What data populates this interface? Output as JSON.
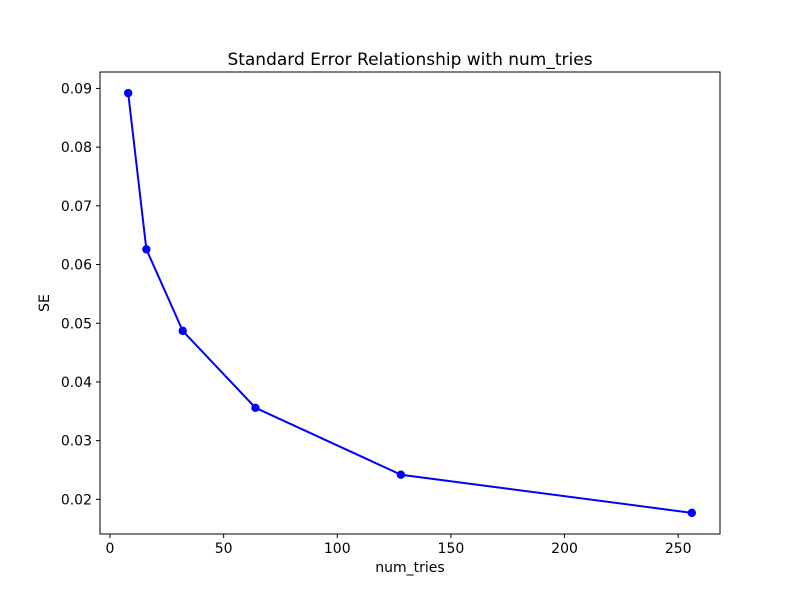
{
  "chart_data": {
    "type": "line",
    "title": "Standard Error Relationship with num_tries",
    "xlabel": "num_tries",
    "ylabel": "SE",
    "x": [
      8,
      16,
      32,
      64,
      128,
      256
    ],
    "y": [
      0.0892,
      0.0626,
      0.0487,
      0.0356,
      0.0242,
      0.0177
    ],
    "xticks": [
      0,
      50,
      100,
      150,
      200,
      250
    ],
    "yticks": [
      0.02,
      0.03,
      0.04,
      0.05,
      0.06,
      0.07,
      0.08,
      0.09
    ],
    "xlim": [
      -4.4,
      268.4
    ],
    "ylim": [
      0.0141,
      0.0928
    ],
    "grid": false,
    "legend": false,
    "line_color": "#0000ff",
    "marker": "circle",
    "marker_color": "#0000ff",
    "background_color": "#ffffff",
    "spine_color": "#000000"
  }
}
